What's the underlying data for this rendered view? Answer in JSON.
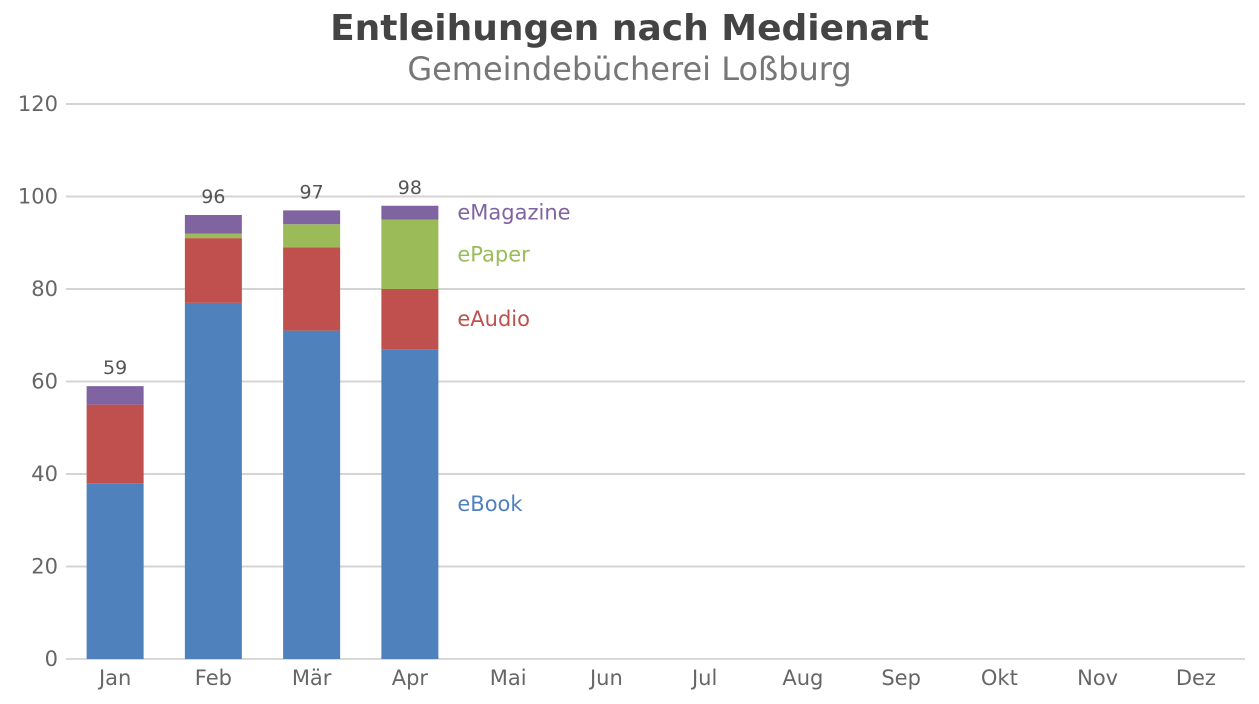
{
  "chart_data": {
    "type": "bar",
    "stacked": true,
    "title": "Entleihungen nach Medienart",
    "subtitle": "Gemeindebücherei Loßburg",
    "categories": [
      "Jan",
      "Feb",
      "Mär",
      "Apr",
      "Mai",
      "Jun",
      "Jul",
      "Aug",
      "Sep",
      "Okt",
      "Nov",
      "Dez"
    ],
    "series": [
      {
        "name": "eBook",
        "color": "#4f81bd",
        "values": [
          38,
          77,
          71,
          67,
          null,
          null,
          null,
          null,
          null,
          null,
          null,
          null
        ]
      },
      {
        "name": "eAudio",
        "color": "#c0504d",
        "values": [
          17,
          14,
          18,
          13,
          null,
          null,
          null,
          null,
          null,
          null,
          null,
          null
        ]
      },
      {
        "name": "ePaper",
        "color": "#9bbb59",
        "values": [
          0,
          1,
          5,
          15,
          null,
          null,
          null,
          null,
          null,
          null,
          null,
          null
        ]
      },
      {
        "name": "eMagazine",
        "color": "#8064a2",
        "values": [
          4,
          4,
          3,
          3,
          null,
          null,
          null,
          null,
          null,
          null,
          null,
          null
        ]
      }
    ],
    "totals": [
      59,
      96,
      97,
      98,
      null,
      null,
      null,
      null,
      null,
      null,
      null,
      null
    ],
    "ylim": [
      0,
      120
    ],
    "yticks": [
      0,
      20,
      40,
      60,
      80,
      100,
      120
    ],
    "grid": true,
    "legend": "inline-right-of-last-bar"
  }
}
